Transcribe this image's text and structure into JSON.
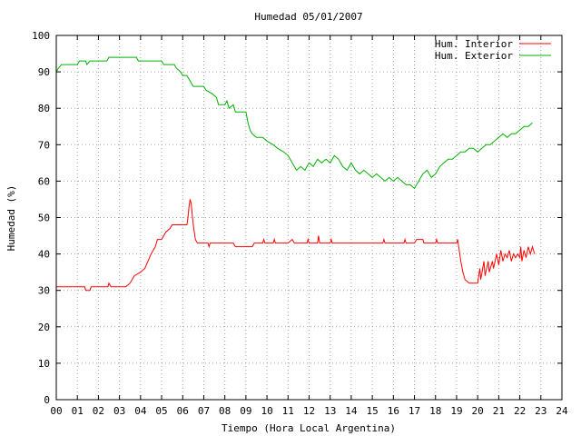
{
  "chart_data": {
    "type": "line",
    "title": "Humedad 05/01/2007",
    "xlabel": "Tiempo (Hora Local Argentina)",
    "ylabel": "Humedad (%)",
    "xlim": [
      0,
      24
    ],
    "ylim": [
      0,
      100
    ],
    "grid": true,
    "legend_position": "top-right",
    "x_ticks": [
      "00",
      "01",
      "02",
      "03",
      "04",
      "05",
      "06",
      "07",
      "08",
      "09",
      "10",
      "11",
      "12",
      "13",
      "14",
      "15",
      "16",
      "17",
      "18",
      "19",
      "20",
      "21",
      "22",
      "23",
      "24"
    ],
    "y_ticks": [
      "0",
      "10",
      "20",
      "30",
      "40",
      "50",
      "60",
      "70",
      "80",
      "90",
      "100"
    ],
    "series": [
      {
        "name": "Hum. Interior",
        "color": "#ff0000",
        "points": [
          [
            0,
            31
          ],
          [
            1.35,
            31
          ],
          [
            1.4,
            30
          ],
          [
            1.6,
            30
          ],
          [
            1.65,
            31
          ],
          [
            2.45,
            31
          ],
          [
            2.5,
            32
          ],
          [
            2.6,
            31
          ],
          [
            3.3,
            31
          ],
          [
            3.5,
            32
          ],
          [
            3.7,
            34
          ],
          [
            4.0,
            35
          ],
          [
            4.2,
            36
          ],
          [
            4.35,
            38
          ],
          [
            4.5,
            40
          ],
          [
            4.7,
            42
          ],
          [
            4.8,
            44
          ],
          [
            5.0,
            44
          ],
          [
            5.1,
            45
          ],
          [
            5.2,
            46
          ],
          [
            5.4,
            47
          ],
          [
            5.5,
            48
          ],
          [
            6.2,
            48
          ],
          [
            6.25,
            50
          ],
          [
            6.3,
            53
          ],
          [
            6.35,
            55
          ],
          [
            6.4,
            54
          ],
          [
            6.5,
            48
          ],
          [
            6.6,
            44
          ],
          [
            6.7,
            43
          ],
          [
            7.2,
            43
          ],
          [
            7.25,
            42
          ],
          [
            7.3,
            43
          ],
          [
            8.4,
            43
          ],
          [
            8.5,
            42
          ],
          [
            9.3,
            42
          ],
          [
            9.4,
            43
          ],
          [
            9.8,
            43
          ],
          [
            9.85,
            44
          ],
          [
            9.9,
            43
          ],
          [
            10.3,
            43
          ],
          [
            10.35,
            44
          ],
          [
            10.4,
            43
          ],
          [
            11.0,
            43
          ],
          [
            11.2,
            44
          ],
          [
            11.3,
            43
          ],
          [
            11.9,
            43
          ],
          [
            11.95,
            44
          ],
          [
            12.0,
            43
          ],
          [
            12.4,
            43
          ],
          [
            12.45,
            45
          ],
          [
            12.5,
            43
          ],
          [
            13.0,
            43
          ],
          [
            13.05,
            44
          ],
          [
            13.1,
            43
          ],
          [
            15.5,
            43
          ],
          [
            15.55,
            44
          ],
          [
            15.6,
            43
          ],
          [
            16.5,
            43
          ],
          [
            16.55,
            44
          ],
          [
            16.6,
            43
          ],
          [
            17.0,
            43
          ],
          [
            17.1,
            44
          ],
          [
            17.4,
            44
          ],
          [
            17.45,
            43
          ],
          [
            18.0,
            43
          ],
          [
            18.05,
            44
          ],
          [
            18.1,
            43
          ],
          [
            19.0,
            43
          ],
          [
            19.05,
            44
          ],
          [
            19.1,
            42
          ],
          [
            19.2,
            38
          ],
          [
            19.3,
            35
          ],
          [
            19.4,
            33
          ],
          [
            19.6,
            32
          ],
          [
            20.0,
            32
          ],
          [
            20.1,
            36
          ],
          [
            20.15,
            33
          ],
          [
            20.3,
            38
          ],
          [
            20.35,
            34
          ],
          [
            20.5,
            38
          ],
          [
            20.55,
            35
          ],
          [
            20.7,
            38
          ],
          [
            20.75,
            36
          ],
          [
            20.9,
            40
          ],
          [
            21.0,
            37
          ],
          [
            21.1,
            41
          ],
          [
            21.2,
            38
          ],
          [
            21.3,
            40
          ],
          [
            21.4,
            39
          ],
          [
            21.5,
            41
          ],
          [
            21.6,
            38
          ],
          [
            21.7,
            40
          ],
          [
            21.8,
            39
          ],
          [
            21.9,
            40
          ],
          [
            22.0,
            39
          ],
          [
            22.05,
            42
          ],
          [
            22.1,
            38
          ],
          [
            22.2,
            41
          ],
          [
            22.3,
            39
          ],
          [
            22.4,
            42
          ],
          [
            22.5,
            40
          ],
          [
            22.6,
            42
          ],
          [
            22.7,
            40
          ]
        ]
      },
      {
        "name": "Hum. Exterior",
        "color": "#00b000",
        "points": [
          [
            0,
            90
          ],
          [
            0.1,
            91
          ],
          [
            0.25,
            92
          ],
          [
            1.0,
            92
          ],
          [
            1.1,
            93
          ],
          [
            1.4,
            93
          ],
          [
            1.45,
            92
          ],
          [
            1.6,
            93
          ],
          [
            2.4,
            93
          ],
          [
            2.5,
            94
          ],
          [
            3.8,
            94
          ],
          [
            3.9,
            93
          ],
          [
            5.0,
            93
          ],
          [
            5.1,
            92
          ],
          [
            5.6,
            92
          ],
          [
            5.7,
            91
          ],
          [
            5.9,
            90
          ],
          [
            6.0,
            89
          ],
          [
            6.2,
            89
          ],
          [
            6.3,
            88
          ],
          [
            6.5,
            86
          ],
          [
            7.0,
            86
          ],
          [
            7.1,
            85
          ],
          [
            7.4,
            84
          ],
          [
            7.6,
            83
          ],
          [
            7.7,
            81
          ],
          [
            8.0,
            81
          ],
          [
            8.1,
            82
          ],
          [
            8.2,
            80
          ],
          [
            8.4,
            81
          ],
          [
            8.5,
            79
          ],
          [
            9.0,
            79
          ],
          [
            9.1,
            76
          ],
          [
            9.2,
            74
          ],
          [
            9.3,
            73
          ],
          [
            9.5,
            72
          ],
          [
            9.8,
            72
          ],
          [
            10.0,
            71
          ],
          [
            10.3,
            70
          ],
          [
            10.5,
            69
          ],
          [
            10.8,
            68
          ],
          [
            11.0,
            67
          ],
          [
            11.2,
            65
          ],
          [
            11.4,
            63
          ],
          [
            11.6,
            64
          ],
          [
            11.8,
            63
          ],
          [
            12.0,
            65
          ],
          [
            12.2,
            64
          ],
          [
            12.4,
            66
          ],
          [
            12.6,
            65
          ],
          [
            12.8,
            66
          ],
          [
            13.0,
            65
          ],
          [
            13.2,
            67
          ],
          [
            13.4,
            66
          ],
          [
            13.6,
            64
          ],
          [
            13.8,
            63
          ],
          [
            14.0,
            65
          ],
          [
            14.2,
            63
          ],
          [
            14.4,
            62
          ],
          [
            14.6,
            63
          ],
          [
            14.8,
            62
          ],
          [
            15.0,
            61
          ],
          [
            15.2,
            62
          ],
          [
            15.4,
            61
          ],
          [
            15.6,
            60
          ],
          [
            15.8,
            61
          ],
          [
            16.0,
            60
          ],
          [
            16.2,
            61
          ],
          [
            16.4,
            60
          ],
          [
            16.6,
            59
          ],
          [
            16.8,
            59
          ],
          [
            17.0,
            58
          ],
          [
            17.2,
            60
          ],
          [
            17.4,
            62
          ],
          [
            17.6,
            63
          ],
          [
            17.8,
            61
          ],
          [
            18.0,
            62
          ],
          [
            18.2,
            64
          ],
          [
            18.4,
            65
          ],
          [
            18.6,
            66
          ],
          [
            18.8,
            66
          ],
          [
            19.0,
            67
          ],
          [
            19.2,
            68
          ],
          [
            19.4,
            68
          ],
          [
            19.6,
            69
          ],
          [
            19.8,
            69
          ],
          [
            20.0,
            68
          ],
          [
            20.2,
            69
          ],
          [
            20.4,
            70
          ],
          [
            20.6,
            70
          ],
          [
            20.8,
            71
          ],
          [
            21.0,
            72
          ],
          [
            21.2,
            73
          ],
          [
            21.4,
            72
          ],
          [
            21.6,
            73
          ],
          [
            21.8,
            73
          ],
          [
            22.0,
            74
          ],
          [
            22.2,
            75
          ],
          [
            22.4,
            75
          ],
          [
            22.6,
            76
          ]
        ]
      }
    ]
  }
}
